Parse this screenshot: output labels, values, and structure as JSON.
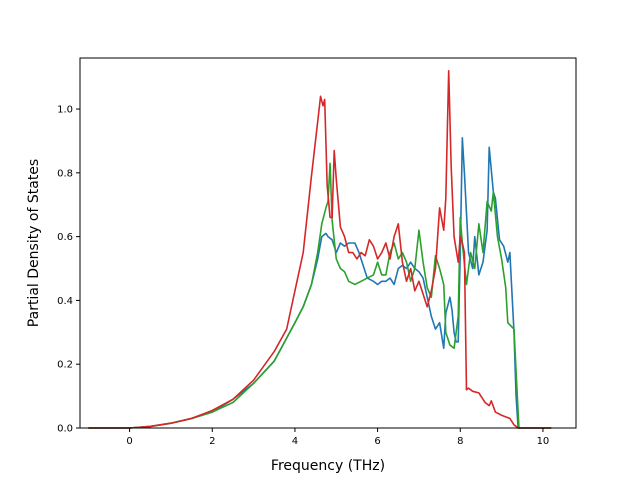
{
  "chart_data": {
    "type": "line",
    "title": "",
    "xlabel": "Frequency (THz)",
    "ylabel": "Partial Density of States",
    "xlim": [
      -1.2,
      10.8
    ],
    "ylim": [
      0.0,
      1.16
    ],
    "xticks": [
      0,
      2,
      4,
      6,
      8,
      10
    ],
    "xtick_labels": [
      "0",
      "2",
      "4",
      "6",
      "8",
      "10"
    ],
    "yticks": [
      0.0,
      0.2,
      0.4,
      0.6,
      0.8,
      1.0
    ],
    "ytick_labels": [
      "0.0",
      "0.2",
      "0.4",
      "0.6",
      "0.8",
      "1.0"
    ],
    "grid": false,
    "legend": "none",
    "series": [
      {
        "color": "#1f77b4",
        "points": [
          [
            -1.0,
            0.0
          ],
          [
            0.0,
            0.0
          ],
          [
            0.5,
            0.005
          ],
          [
            1.0,
            0.015
          ],
          [
            1.5,
            0.03
          ],
          [
            2.0,
            0.05
          ],
          [
            2.5,
            0.09
          ],
          [
            3.0,
            0.14
          ],
          [
            3.5,
            0.21
          ],
          [
            4.0,
            0.33
          ],
          [
            4.2,
            0.38
          ],
          [
            4.4,
            0.45
          ],
          [
            4.55,
            0.53
          ],
          [
            4.65,
            0.6
          ],
          [
            4.75,
            0.61
          ],
          [
            4.8,
            0.6
          ],
          [
            4.9,
            0.59
          ],
          [
            5.0,
            0.55
          ],
          [
            5.1,
            0.58
          ],
          [
            5.2,
            0.57
          ],
          [
            5.3,
            0.58
          ],
          [
            5.45,
            0.58
          ],
          [
            5.55,
            0.55
          ],
          [
            5.65,
            0.51
          ],
          [
            5.75,
            0.47
          ],
          [
            5.9,
            0.46
          ],
          [
            6.0,
            0.45
          ],
          [
            6.1,
            0.46
          ],
          [
            6.2,
            0.46
          ],
          [
            6.3,
            0.47
          ],
          [
            6.4,
            0.45
          ],
          [
            6.5,
            0.5
          ],
          [
            6.6,
            0.51
          ],
          [
            6.7,
            0.5
          ],
          [
            6.8,
            0.52
          ],
          [
            6.9,
            0.5
          ],
          [
            7.0,
            0.49
          ],
          [
            7.1,
            0.47
          ],
          [
            7.2,
            0.41
          ],
          [
            7.3,
            0.35
          ],
          [
            7.4,
            0.31
          ],
          [
            7.5,
            0.33
          ],
          [
            7.6,
            0.25
          ],
          [
            7.65,
            0.36
          ],
          [
            7.75,
            0.41
          ],
          [
            7.8,
            0.37
          ],
          [
            7.85,
            0.3
          ],
          [
            7.9,
            0.27
          ],
          [
            7.95,
            0.27
          ],
          [
            8.0,
            0.55
          ],
          [
            8.05,
            0.91
          ],
          [
            8.1,
            0.8
          ],
          [
            8.2,
            0.55
          ],
          [
            8.3,
            0.5
          ],
          [
            8.35,
            0.6
          ],
          [
            8.45,
            0.48
          ],
          [
            8.55,
            0.52
          ],
          [
            8.65,
            0.62
          ],
          [
            8.7,
            0.88
          ],
          [
            8.8,
            0.74
          ],
          [
            8.85,
            0.72
          ],
          [
            8.95,
            0.59
          ],
          [
            9.05,
            0.57
          ],
          [
            9.15,
            0.52
          ],
          [
            9.2,
            0.55
          ],
          [
            9.3,
            0.3
          ],
          [
            9.35,
            0.1
          ],
          [
            9.4,
            0.0
          ],
          [
            10.2,
            0.0
          ]
        ]
      },
      {
        "color": "#2ca02c",
        "points": [
          [
            -1.0,
            0.0
          ],
          [
            0.0,
            0.0
          ],
          [
            0.5,
            0.005
          ],
          [
            1.0,
            0.015
          ],
          [
            1.5,
            0.03
          ],
          [
            2.0,
            0.05
          ],
          [
            2.5,
            0.08
          ],
          [
            3.0,
            0.14
          ],
          [
            3.5,
            0.21
          ],
          [
            4.0,
            0.33
          ],
          [
            4.2,
            0.38
          ],
          [
            4.4,
            0.45
          ],
          [
            4.55,
            0.55
          ],
          [
            4.65,
            0.64
          ],
          [
            4.75,
            0.69
          ],
          [
            4.8,
            0.71
          ],
          [
            4.85,
            0.83
          ],
          [
            4.9,
            0.65
          ],
          [
            5.0,
            0.53
          ],
          [
            5.1,
            0.5
          ],
          [
            5.2,
            0.49
          ],
          [
            5.3,
            0.46
          ],
          [
            5.45,
            0.45
          ],
          [
            5.6,
            0.46
          ],
          [
            5.75,
            0.47
          ],
          [
            5.9,
            0.48
          ],
          [
            6.0,
            0.52
          ],
          [
            6.1,
            0.48
          ],
          [
            6.2,
            0.48
          ],
          [
            6.3,
            0.55
          ],
          [
            6.4,
            0.58
          ],
          [
            6.5,
            0.53
          ],
          [
            6.6,
            0.55
          ],
          [
            6.7,
            0.52
          ],
          [
            6.8,
            0.46
          ],
          [
            6.9,
            0.5
          ],
          [
            7.0,
            0.62
          ],
          [
            7.1,
            0.52
          ],
          [
            7.2,
            0.44
          ],
          [
            7.3,
            0.41
          ],
          [
            7.4,
            0.54
          ],
          [
            7.5,
            0.5
          ],
          [
            7.6,
            0.45
          ],
          [
            7.65,
            0.3
          ],
          [
            7.7,
            0.28
          ],
          [
            7.75,
            0.26
          ],
          [
            7.85,
            0.25
          ],
          [
            7.95,
            0.35
          ],
          [
            8.0,
            0.66
          ],
          [
            8.05,
            0.58
          ],
          [
            8.15,
            0.45
          ],
          [
            8.25,
            0.55
          ],
          [
            8.35,
            0.5
          ],
          [
            8.45,
            0.64
          ],
          [
            8.55,
            0.55
          ],
          [
            8.65,
            0.71
          ],
          [
            8.75,
            0.68
          ],
          [
            8.8,
            0.74
          ],
          [
            8.9,
            0.6
          ],
          [
            9.0,
            0.53
          ],
          [
            9.1,
            0.44
          ],
          [
            9.15,
            0.33
          ],
          [
            9.3,
            0.31
          ],
          [
            9.38,
            0.1
          ],
          [
            9.42,
            0.0
          ],
          [
            10.2,
            0.0
          ]
        ]
      },
      {
        "color": "#d62728",
        "points": [
          [
            -1.0,
            0.0
          ],
          [
            0.0,
            0.0
          ],
          [
            0.5,
            0.005
          ],
          [
            1.0,
            0.015
          ],
          [
            1.5,
            0.03
          ],
          [
            2.0,
            0.055
          ],
          [
            2.5,
            0.09
          ],
          [
            3.0,
            0.15
          ],
          [
            3.5,
            0.24
          ],
          [
            3.8,
            0.31
          ],
          [
            4.0,
            0.43
          ],
          [
            4.2,
            0.55
          ],
          [
            4.4,
            0.79
          ],
          [
            4.55,
            0.96
          ],
          [
            4.62,
            1.04
          ],
          [
            4.68,
            1.01
          ],
          [
            4.72,
            1.03
          ],
          [
            4.78,
            0.76
          ],
          [
            4.85,
            0.66
          ],
          [
            4.9,
            0.66
          ],
          [
            4.95,
            0.87
          ],
          [
            5.0,
            0.78
          ],
          [
            5.1,
            0.63
          ],
          [
            5.2,
            0.6
          ],
          [
            5.3,
            0.55
          ],
          [
            5.4,
            0.55
          ],
          [
            5.5,
            0.53
          ],
          [
            5.6,
            0.55
          ],
          [
            5.7,
            0.54
          ],
          [
            5.8,
            0.59
          ],
          [
            5.9,
            0.57
          ],
          [
            6.0,
            0.53
          ],
          [
            6.1,
            0.55
          ],
          [
            6.2,
            0.58
          ],
          [
            6.3,
            0.53
          ],
          [
            6.4,
            0.6
          ],
          [
            6.5,
            0.64
          ],
          [
            6.6,
            0.52
          ],
          [
            6.7,
            0.46
          ],
          [
            6.8,
            0.5
          ],
          [
            6.9,
            0.43
          ],
          [
            7.0,
            0.46
          ],
          [
            7.1,
            0.42
          ],
          [
            7.2,
            0.38
          ],
          [
            7.3,
            0.43
          ],
          [
            7.4,
            0.5
          ],
          [
            7.5,
            0.69
          ],
          [
            7.6,
            0.62
          ],
          [
            7.65,
            0.72
          ],
          [
            7.72,
            1.12
          ],
          [
            7.78,
            0.82
          ],
          [
            7.85,
            0.6
          ],
          [
            7.95,
            0.52
          ],
          [
            8.0,
            0.6
          ],
          [
            8.05,
            0.58
          ],
          [
            8.1,
            0.55
          ],
          [
            8.15,
            0.12
          ],
          [
            8.2,
            0.125
          ],
          [
            8.3,
            0.115
          ],
          [
            8.45,
            0.11
          ],
          [
            8.6,
            0.08
          ],
          [
            8.7,
            0.07
          ],
          [
            8.75,
            0.085
          ],
          [
            8.85,
            0.05
          ],
          [
            9.0,
            0.04
          ],
          [
            9.1,
            0.035
          ],
          [
            9.2,
            0.03
          ],
          [
            9.3,
            0.01
          ],
          [
            9.4,
            0.0
          ],
          [
            10.2,
            0.0
          ]
        ]
      }
    ]
  }
}
